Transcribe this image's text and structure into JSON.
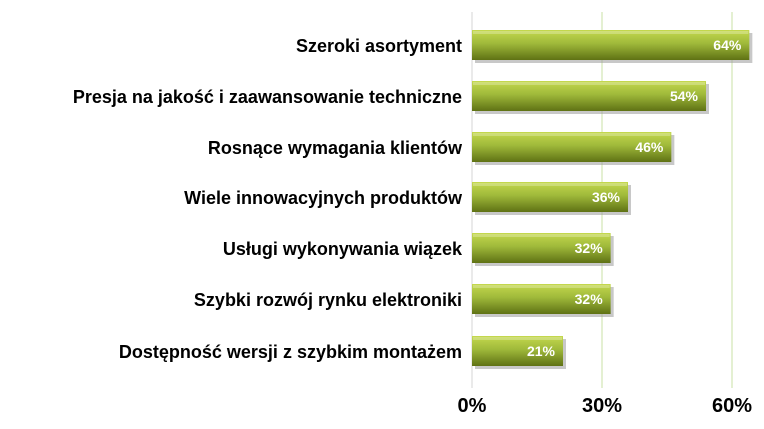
{
  "chart_data": {
    "type": "bar",
    "orientation": "horizontal",
    "categories": [
      "Szeroki asortyment",
      "Presja na jakość i zaawansowanie techniczne",
      "Rosnące wymagania klientów",
      "Wiele innowacyjnych produktów",
      "Usługi wykonywania wiązek",
      "Szybki rozwój rynku elektroniki",
      "Dostępność wersji z szybkim montażem"
    ],
    "values": [
      64,
      54,
      46,
      36,
      32,
      32,
      21
    ],
    "value_labels": [
      "64%",
      "54%",
      "46%",
      "36%",
      "32%",
      "32%",
      "21%"
    ],
    "x_ticks": [
      0,
      30,
      60
    ],
    "x_tick_labels": [
      "0%",
      "30%",
      "60%"
    ],
    "xlim": [
      0,
      66
    ],
    "grid": "vertical",
    "colors": {
      "bar_light": "#c4d84e",
      "bar_mid": "#9fb93a",
      "bar_dark": "#5f7214",
      "shadow": "#9a9a9a",
      "grid": "#c9e0a6",
      "axis": "#d6d6d6"
    }
  }
}
